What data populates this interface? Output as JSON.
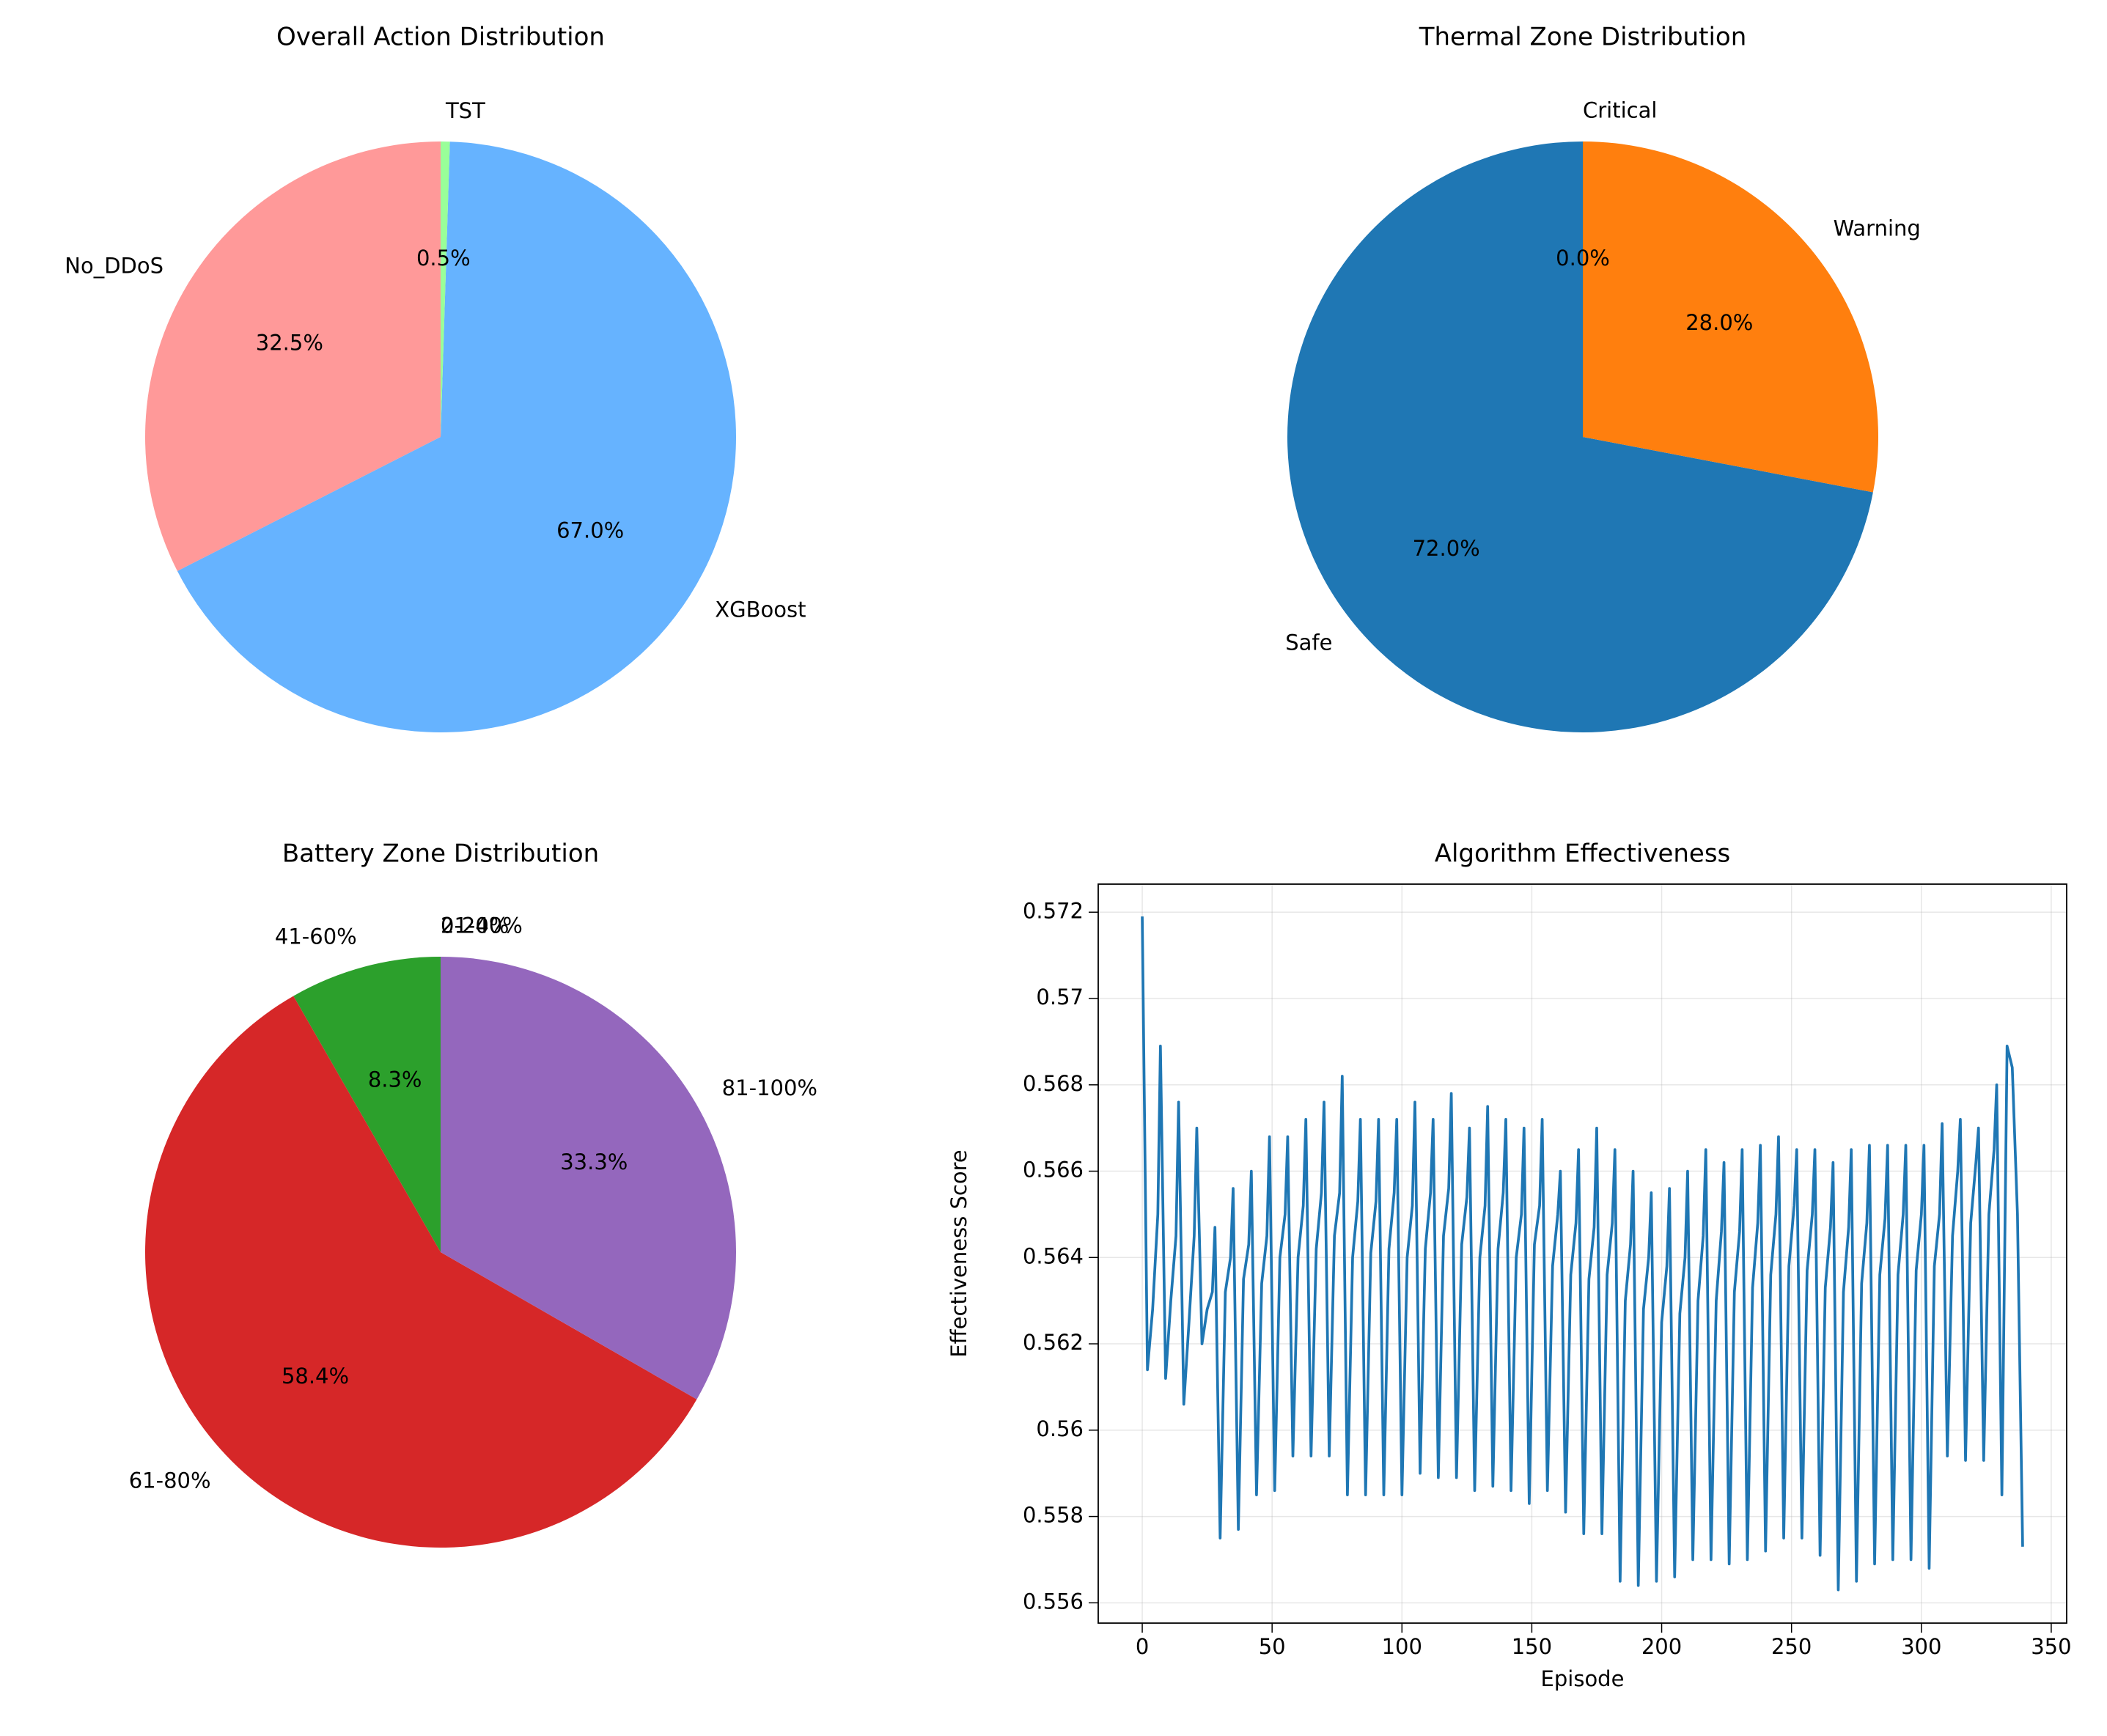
{
  "chart_data": [
    {
      "type": "pie",
      "title": "Overall Action Distribution",
      "labels": [
        "No_DDoS",
        "XGBoost",
        "TST"
      ],
      "values": [
        32.5,
        67.0,
        0.5
      ],
      "value_labels": [
        "32.5%",
        "67.0%",
        "0.5%"
      ],
      "colors": [
        "#ff9999",
        "#66b3ff",
        "#99ff99"
      ]
    },
    {
      "type": "pie",
      "title": "Thermal Zone Distribution",
      "labels": [
        "Safe",
        "Warning",
        "Critical"
      ],
      "values": [
        72.0,
        28.0,
        0.0
      ],
      "value_labels": [
        "72.0%",
        "28.0%",
        "0.0%"
      ],
      "colors": [
        "#1f77b4",
        "#ff7f0e",
        "#2ca02c"
      ]
    },
    {
      "type": "pie",
      "title": "Battery Zone Distribution",
      "labels": [
        "0-20%",
        "21-40%",
        "41-60%",
        "61-80%",
        "81-100%"
      ],
      "values": [
        0.0,
        0.0,
        8.3,
        58.4,
        33.3
      ],
      "value_labels": [
        "0.0%",
        "0.0%",
        "8.3%",
        "58.4%",
        "33.3%"
      ],
      "colors": [
        "#1f77b4",
        "#ff7f0e",
        "#2ca02c",
        "#d62728",
        "#9467bd"
      ]
    },
    {
      "type": "line",
      "title": "Algorithm Effectiveness",
      "xlabel": "Episode",
      "ylabel": "Effectiveness Score",
      "color": "#1f77b4",
      "grid": true,
      "xlim": [
        -16.95,
        355.95
      ],
      "ylim": [
        0.55553,
        0.57265
      ],
      "xticks": [
        0,
        50,
        100,
        150,
        200,
        250,
        300,
        350
      ],
      "yticks": [
        0.556,
        0.558,
        0.56,
        0.562,
        0.564,
        0.566,
        0.568,
        0.57,
        0.572
      ],
      "x": [
        0,
        2,
        4,
        6,
        7,
        9,
        11,
        13,
        14,
        16,
        18,
        20,
        21,
        23,
        25,
        27,
        28,
        30,
        32,
        34,
        35,
        37,
        39,
        41,
        42,
        44,
        46,
        48,
        49,
        51,
        53,
        55,
        56,
        58,
        60,
        62,
        63,
        65,
        67,
        69,
        70,
        72,
        74,
        76,
        77,
        79,
        81,
        83,
        84,
        86,
        88,
        90,
        91,
        93,
        95,
        97,
        98,
        100,
        102,
        104,
        105,
        107,
        109,
        111,
        112,
        114,
        116,
        118,
        119,
        121,
        123,
        125,
        126,
        128,
        130,
        132,
        133,
        135,
        137,
        139,
        140,
        142,
        144,
        146,
        147,
        149,
        151,
        153,
        154,
        156,
        158,
        160,
        161,
        163,
        165,
        167,
        168,
        170,
        172,
        174,
        175,
        177,
        179,
        181,
        182,
        184,
        186,
        188,
        189,
        191,
        193,
        195,
        196,
        198,
        200,
        202,
        203,
        205,
        207,
        209,
        210,
        212,
        214,
        216,
        217,
        219,
        221,
        223,
        224,
        226,
        228,
        230,
        231,
        233,
        235,
        237,
        238,
        240,
        242,
        244,
        245,
        247,
        249,
        251,
        252,
        254,
        256,
        258,
        259,
        261,
        263,
        265,
        266,
        268,
        270,
        272,
        273,
        275,
        277,
        279,
        280,
        282,
        284,
        286,
        287,
        289,
        291,
        293,
        294,
        296,
        298,
        300,
        301,
        303,
        305,
        307,
        308,
        310,
        312,
        314,
        315,
        317,
        319,
        321,
        322,
        324,
        326,
        328,
        329,
        331,
        333,
        335,
        337,
        339
      ],
      "values": [
        0.5719,
        0.5614,
        0.5628,
        0.565,
        0.5689,
        0.5612,
        0.563,
        0.5645,
        0.5676,
        0.5606,
        0.5625,
        0.5645,
        0.567,
        0.562,
        0.5628,
        0.5632,
        0.5647,
        0.5575,
        0.5632,
        0.564,
        0.5656,
        0.5577,
        0.5635,
        0.5643,
        0.566,
        0.5585,
        0.5634,
        0.5645,
        0.5668,
        0.5586,
        0.564,
        0.565,
        0.5668,
        0.5594,
        0.564,
        0.5652,
        0.5672,
        0.5594,
        0.5642,
        0.5655,
        0.5676,
        0.5594,
        0.5645,
        0.5655,
        0.5682,
        0.5585,
        0.564,
        0.5653,
        0.5672,
        0.5585,
        0.5641,
        0.5653,
        0.5672,
        0.5585,
        0.5642,
        0.5655,
        0.5672,
        0.5585,
        0.564,
        0.5652,
        0.5676,
        0.559,
        0.5642,
        0.5655,
        0.5672,
        0.5589,
        0.5645,
        0.5656,
        0.5678,
        0.5589,
        0.5643,
        0.5654,
        0.567,
        0.5586,
        0.564,
        0.5652,
        0.5675,
        0.5587,
        0.5642,
        0.5655,
        0.5672,
        0.5586,
        0.564,
        0.565,
        0.567,
        0.5583,
        0.5643,
        0.5652,
        0.5672,
        0.5586,
        0.5638,
        0.565,
        0.566,
        0.5581,
        0.5636,
        0.5648,
        0.5665,
        0.5576,
        0.5635,
        0.5647,
        0.567,
        0.5576,
        0.5636,
        0.5648,
        0.5665,
        0.5565,
        0.563,
        0.5643,
        0.566,
        0.5564,
        0.5628,
        0.564,
        0.5655,
        0.5565,
        0.5625,
        0.5638,
        0.5656,
        0.5566,
        0.5627,
        0.564,
        0.566,
        0.557,
        0.563,
        0.5645,
        0.5665,
        0.557,
        0.563,
        0.5646,
        0.5662,
        0.5569,
        0.5632,
        0.5646,
        0.5665,
        0.557,
        0.5633,
        0.5648,
        0.5666,
        0.5572,
        0.5636,
        0.565,
        0.5668,
        0.5575,
        0.5638,
        0.5652,
        0.5665,
        0.5575,
        0.5637,
        0.565,
        0.5665,
        0.5571,
        0.5633,
        0.5647,
        0.5662,
        0.5563,
        0.5632,
        0.5647,
        0.5665,
        0.5565,
        0.5634,
        0.5648,
        0.5666,
        0.5569,
        0.5636,
        0.5649,
        0.5666,
        0.557,
        0.5636,
        0.565,
        0.5666,
        0.557,
        0.5637,
        0.565,
        0.5666,
        0.5568,
        0.5638,
        0.565,
        0.5671,
        0.5594,
        0.5645,
        0.566,
        0.5672,
        0.5593,
        0.5648,
        0.5662,
        0.567,
        0.5593,
        0.565,
        0.5665,
        0.568,
        0.5585,
        0.5689,
        0.5684,
        0.565,
        0.5573
      ]
    }
  ]
}
